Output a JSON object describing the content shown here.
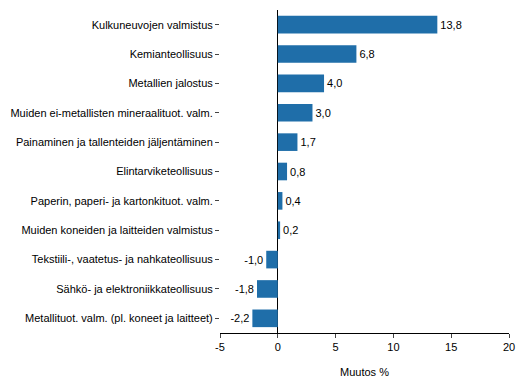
{
  "chart_data": {
    "type": "bar",
    "orientation": "horizontal",
    "categories": [
      "Kulkuneuvojen valmistus",
      "Kemianteollisuus",
      "Metallien jalostus",
      "Muiden ei-metallisten mineraalituot. valm.",
      "Painaminen ja tallenteiden jäljentäminen",
      "Elintarviketeollisuus",
      "Paperin, paperi- ja kartonkituot. valm.",
      "Muiden koneiden ja laitteiden valmistus",
      "Tekstiili-, vaatetus- ja nahkateollisuus",
      "Sähkö- ja elektroniikkateollisuus",
      "Metallituot. valm. (pl. koneet ja laitteet)"
    ],
    "values": [
      13.8,
      6.8,
      4.0,
      3.0,
      1.7,
      0.8,
      0.4,
      0.2,
      -1.0,
      -1.8,
      -2.2
    ],
    "value_labels": [
      "13,8",
      "6,8",
      "4,0",
      "3,0",
      "1,7",
      "0,8",
      "0,4",
      "0,2",
      "-1,0",
      "-1,8",
      "-2,2"
    ],
    "color": "#1f6ea9",
    "xlabel": "Muutos %",
    "xlim": [
      -5,
      20
    ],
    "xticks": [
      -5,
      0,
      5,
      10,
      15,
      20
    ],
    "grid": false,
    "data_labels": true
  }
}
